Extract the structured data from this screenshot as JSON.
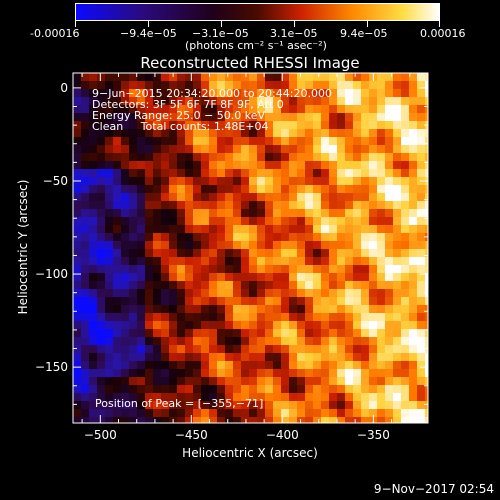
{
  "colorbar": {
    "tick_labels": [
      "-0.00016",
      "−9.4e−05",
      "−3.1e−05",
      "3.1e−05",
      "9.4e−05",
      "0.00016"
    ],
    "unit_label": "(photons cm⁻² s⁻¹ asec⁻²)",
    "range": [
      -0.00016,
      0.00016
    ],
    "colors": [
      "#0a0aff",
      "#2a0a80",
      "#200018",
      "#4a0a00",
      "#cc2200",
      "#ff8800",
      "#ffdd44",
      "#ffffff"
    ]
  },
  "chart_data": {
    "type": "heatmap",
    "title": "Reconstructed RHESSI Image",
    "xlabel": "Heliocentric X (arcsec)",
    "ylabel": "Heliocentric Y (arcsec)",
    "xlim": [
      -515,
      -320
    ],
    "ylim": [
      -180,
      8
    ],
    "x_ticks": [
      -500,
      -450,
      -400,
      -350
    ],
    "y_ticks": [
      0,
      -50,
      -100,
      -150
    ],
    "x_tick_labels": [
      "−500",
      "−450",
      "−400",
      "−350"
    ],
    "y_tick_labels": [
      "0",
      "−50",
      "−100",
      "−150"
    ],
    "annotations": [
      "9−Jun−2015 20:34:20.000 to 20:44:20.000",
      "Detectors: 3F 5F 6F 7F 8F 9F, Att 0",
      "Energy Range: 25.0 − 50.0 keV",
      "Clean     Total counts: 1.48E+04"
    ],
    "peak_label": "Position of Peak = [−355,−71]",
    "peak": [
      -355,
      -71
    ]
  },
  "footer": {
    "timestamp": "9−Nov−2017 02:54"
  }
}
